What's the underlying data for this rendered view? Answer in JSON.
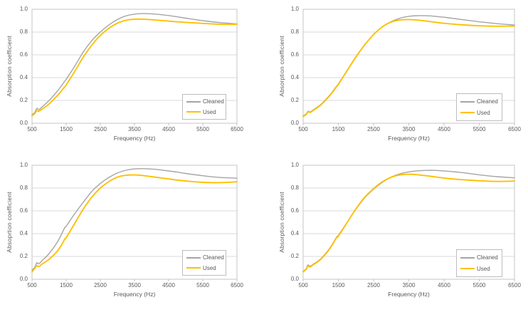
{
  "colors": {
    "cleaned": "#A5A5A5",
    "used": "#FFC000",
    "grid": "#D9D9D9",
    "border": "#C6C6C6",
    "tick": "#BFBFBF",
    "text": "#595959",
    "background": "#FFFFFF"
  },
  "legend": {
    "cleaned_label": "Cleaned",
    "used_label": "Used"
  },
  "chart_data": [
    {
      "type": "line",
      "position": "top-left",
      "xlabel": "Frequency (Hz)",
      "ylabel": "Absorption coefficient",
      "xlim": [
        500,
        6500
      ],
      "ylim": [
        0.0,
        1.0
      ],
      "x_ticks": [
        500,
        1500,
        2500,
        3500,
        4500,
        5500,
        6500
      ],
      "y_ticks": [
        "0.0",
        "0.2",
        "0.4",
        "0.6",
        "0.8",
        "1.0"
      ],
      "grid": "horizontal",
      "legend_position": "inside-right",
      "x": [
        500,
        580,
        640,
        700,
        800,
        1000,
        1250,
        1420,
        1460,
        1500,
        1750,
        2000,
        2250,
        2500,
        2750,
        3000,
        3250,
        3500,
        3750,
        4000,
        4250,
        4500,
        4750,
        5000,
        5500,
        6000,
        6500
      ],
      "series": [
        {
          "name": "Cleaned",
          "color_key": "cleaned",
          "values": [
            0.075,
            0.095,
            0.13,
            0.12,
            0.145,
            0.2,
            0.285,
            0.353,
            0.369,
            0.385,
            0.5,
            0.625,
            0.725,
            0.8,
            0.862,
            0.91,
            0.942,
            0.957,
            0.962,
            0.96,
            0.954,
            0.945,
            0.934,
            0.922,
            0.9,
            0.883,
            0.872
          ]
        },
        {
          "name": "Used",
          "color_key": "used",
          "values": [
            0.065,
            0.085,
            0.11,
            0.105,
            0.125,
            0.17,
            0.245,
            0.306,
            0.32,
            0.335,
            0.455,
            0.58,
            0.685,
            0.77,
            0.833,
            0.878,
            0.903,
            0.913,
            0.913,
            0.908,
            0.902,
            0.896,
            0.89,
            0.885,
            0.876,
            0.868,
            0.868
          ]
        }
      ]
    },
    {
      "type": "line",
      "position": "top-right",
      "xlabel": "Frequency (Hz)",
      "ylabel": "Absorption coefficient",
      "xlim": [
        500,
        6500
      ],
      "ylim": [
        0.0,
        1.0
      ],
      "x_ticks": [
        500,
        1500,
        2500,
        3500,
        4500,
        5500,
        6500
      ],
      "y_ticks": [
        "0.0",
        "0.2",
        "0.4",
        "0.6",
        "0.8",
        "1.0"
      ],
      "grid": "horizontal",
      "legend_position": "inside-right",
      "x": [
        500,
        580,
        640,
        700,
        800,
        1000,
        1250,
        1420,
        1460,
        1500,
        1750,
        2000,
        2250,
        2500,
        2750,
        3000,
        3250,
        3500,
        3750,
        4000,
        4250,
        4500,
        4750,
        5000,
        5500,
        6000,
        6500
      ],
      "series": [
        {
          "name": "Cleaned",
          "color_key": "cleaned",
          "values": [
            0.065,
            0.08,
            0.105,
            0.1,
            0.12,
            0.165,
            0.245,
            0.313,
            0.33,
            0.345,
            0.465,
            0.585,
            0.69,
            0.78,
            0.845,
            0.892,
            0.922,
            0.938,
            0.944,
            0.943,
            0.938,
            0.93,
            0.92,
            0.91,
            0.89,
            0.874,
            0.862
          ]
        },
        {
          "name": "Used",
          "color_key": "used",
          "values": [
            0.06,
            0.075,
            0.1,
            0.095,
            0.115,
            0.16,
            0.24,
            0.308,
            0.325,
            0.34,
            0.462,
            0.582,
            0.688,
            0.778,
            0.846,
            0.888,
            0.906,
            0.91,
            0.905,
            0.896,
            0.886,
            0.877,
            0.87,
            0.864,
            0.855,
            0.851,
            0.854
          ]
        }
      ]
    },
    {
      "type": "line",
      "position": "bottom-left",
      "xlabel": "Frequency (Hz)",
      "ylabel": "Absoprtion coefficient",
      "xlim": [
        500,
        6500
      ],
      "ylim": [
        0.0,
        1.0
      ],
      "x_ticks": [
        500,
        1500,
        2500,
        3500,
        4500,
        5500,
        6500
      ],
      "y_ticks": [
        "0.0",
        "0.2",
        "0.4",
        "0.6",
        "0.8",
        "1.0"
      ],
      "grid": "horizontal",
      "legend_position": "inside-right",
      "x": [
        500,
        580,
        640,
        700,
        800,
        1000,
        1250,
        1420,
        1460,
        1500,
        1750,
        2000,
        2250,
        2500,
        2750,
        3000,
        3250,
        3500,
        3750,
        4000,
        4250,
        4500,
        4750,
        5000,
        5500,
        6000,
        6500
      ],
      "series": [
        {
          "name": "Cleaned",
          "color_key": "cleaned",
          "values": [
            0.08,
            0.105,
            0.145,
            0.135,
            0.165,
            0.225,
            0.33,
            0.43,
            0.455,
            0.465,
            0.575,
            0.675,
            0.77,
            0.84,
            0.893,
            0.932,
            0.956,
            0.968,
            0.97,
            0.967,
            0.96,
            0.95,
            0.94,
            0.928,
            0.908,
            0.893,
            0.887
          ]
        },
        {
          "name": "Used",
          "color_key": "used",
          "values": [
            0.065,
            0.095,
            0.12,
            0.11,
            0.135,
            0.175,
            0.25,
            0.33,
            0.355,
            0.365,
            0.49,
            0.615,
            0.72,
            0.8,
            0.856,
            0.896,
            0.912,
            0.915,
            0.91,
            0.9,
            0.89,
            0.88,
            0.87,
            0.862,
            0.85,
            0.848,
            0.855
          ]
        }
      ]
    },
    {
      "type": "line",
      "position": "bottom-right",
      "xlabel": "Frequency (Hz)",
      "ylabel": "Absorption coefficient",
      "xlim": [
        500,
        6500
      ],
      "ylim": [
        0.0,
        1.0
      ],
      "x_ticks": [
        500,
        1500,
        2500,
        3500,
        4500,
        5500,
        6500
      ],
      "y_ticks": [
        "0.0",
        "0.2",
        "0.4",
        "0.6",
        "0.8",
        "1.0"
      ],
      "grid": "horizontal",
      "legend_position": "inside-right",
      "x": [
        500,
        580,
        640,
        700,
        800,
        1000,
        1250,
        1420,
        1460,
        1500,
        1750,
        2000,
        2250,
        2500,
        2750,
        3000,
        3250,
        3500,
        3750,
        4000,
        4250,
        4500,
        4750,
        5000,
        5500,
        6000,
        6500
      ],
      "series": [
        {
          "name": "Cleaned",
          "color_key": "cleaned",
          "values": [
            0.07,
            0.09,
            0.125,
            0.115,
            0.135,
            0.18,
            0.27,
            0.355,
            0.375,
            0.385,
            0.5,
            0.615,
            0.715,
            0.79,
            0.85,
            0.896,
            0.925,
            0.942,
            0.951,
            0.955,
            0.955,
            0.95,
            0.944,
            0.936,
            0.916,
            0.9,
            0.89
          ]
        },
        {
          "name": "Used",
          "color_key": "used",
          "values": [
            0.065,
            0.085,
            0.115,
            0.108,
            0.13,
            0.175,
            0.265,
            0.35,
            0.372,
            0.378,
            0.498,
            0.618,
            0.72,
            0.795,
            0.855,
            0.895,
            0.915,
            0.921,
            0.916,
            0.908,
            0.898,
            0.888,
            0.88,
            0.874,
            0.864,
            0.858,
            0.861
          ]
        }
      ]
    }
  ]
}
